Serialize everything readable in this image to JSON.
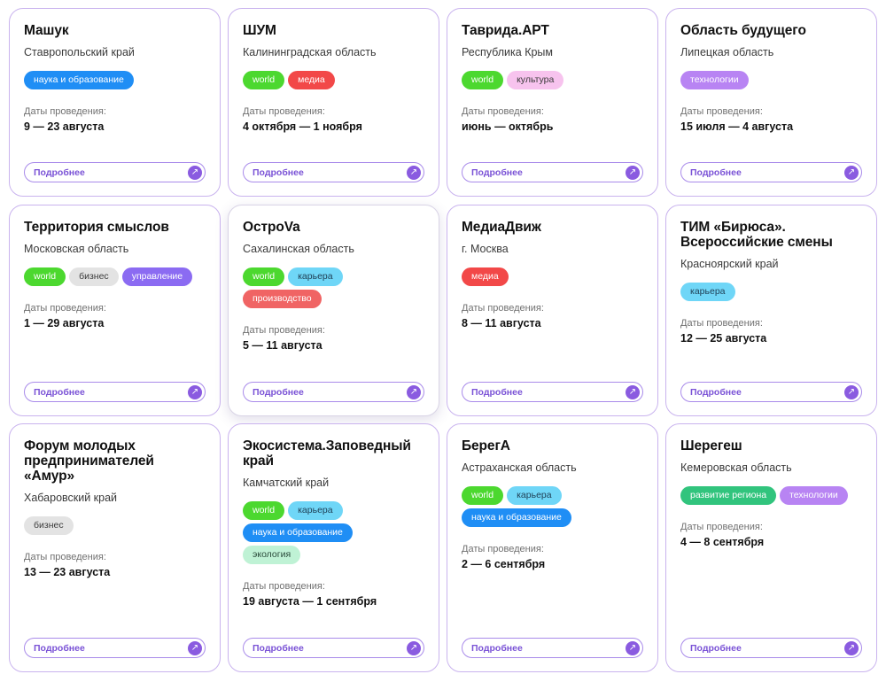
{
  "dates_label": "Даты проведения:",
  "more_label": "Подробнее",
  "arrow_glyph": "↗",
  "cards": [
    {
      "title": "Машук",
      "region": "Ставропольский край",
      "tags": [
        {
          "label": "наука и образование",
          "kind": "science"
        }
      ],
      "dates": "9 — 23 августа"
    },
    {
      "title": "ШУМ",
      "region": "Калининградская область",
      "tags": [
        {
          "label": "world",
          "kind": "world"
        },
        {
          "label": "медиа",
          "kind": "media"
        }
      ],
      "dates": "4 октября — 1 ноября"
    },
    {
      "title": "Таврида.АРТ",
      "region": "Республика Крым",
      "tags": [
        {
          "label": "world",
          "kind": "world"
        },
        {
          "label": "культура",
          "kind": "culture"
        }
      ],
      "dates": "июнь — октябрь"
    },
    {
      "title": "Область будущего",
      "region": "Липецкая область",
      "tags": [
        {
          "label": "технологии",
          "kind": "tech"
        }
      ],
      "dates": "15 июля — 4 августа"
    },
    {
      "title": "Территория смыслов",
      "region": "Московская область",
      "tags": [
        {
          "label": "world",
          "kind": "world"
        },
        {
          "label": "бизнес",
          "kind": "biz"
        },
        {
          "label": "управление",
          "kind": "manage"
        }
      ],
      "dates": "1 — 29 августа"
    },
    {
      "title": "ОстроVa",
      "region": "Сахалинская область",
      "tags": [
        {
          "label": "world",
          "kind": "world"
        },
        {
          "label": "карьера",
          "kind": "career"
        },
        {
          "label": "производство",
          "kind": "prod"
        }
      ],
      "dates": "5 — 11 августа"
    },
    {
      "title": "МедиаДвиж",
      "region": "г. Москва",
      "tags": [
        {
          "label": "медиа",
          "kind": "media"
        }
      ],
      "dates": "8 — 11 августа"
    },
    {
      "title": "ТИМ «Бирюса». Всероссийские смены",
      "region": "Красноярский край",
      "tags": [
        {
          "label": "карьера",
          "kind": "career"
        }
      ],
      "dates": "12 — 25 августа"
    },
    {
      "title": "Форум молодых предпринимателей «Амур»",
      "region": "Хабаровский край",
      "tags": [
        {
          "label": "бизнес",
          "kind": "biz"
        }
      ],
      "dates": "13 — 23 августа"
    },
    {
      "title": "Экосистема.Заповедный край",
      "region": "Камчатский край",
      "tags": [
        {
          "label": "world",
          "kind": "world"
        },
        {
          "label": "карьера",
          "kind": "career"
        },
        {
          "label": "наука и образование",
          "kind": "science"
        },
        {
          "label": "экология",
          "kind": "eco"
        }
      ],
      "dates": "19 августа — 1 сентября"
    },
    {
      "title": "БерегА",
      "region": "Астраханская область",
      "tags": [
        {
          "label": "world",
          "kind": "world"
        },
        {
          "label": "карьера",
          "kind": "career"
        },
        {
          "label": "наука и образование",
          "kind": "science"
        }
      ],
      "dates": "2 — 6 сентября"
    },
    {
      "title": "Шерегеш",
      "region": "Кемеровская область",
      "tags": [
        {
          "label": "развитие региона",
          "kind": "region"
        },
        {
          "label": "технологии",
          "kind": "tech"
        }
      ],
      "dates": "4 — 8 сентября"
    }
  ]
}
